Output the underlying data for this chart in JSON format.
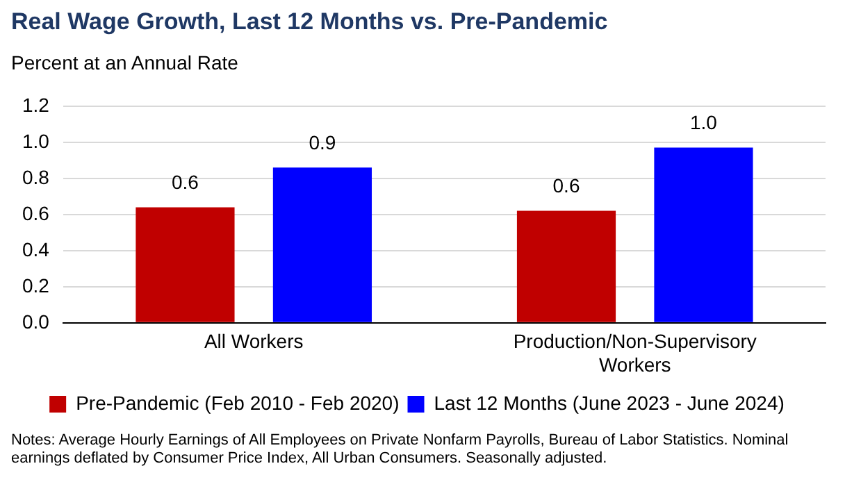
{
  "chart_data": {
    "type": "bar",
    "title": "Real Wage Growth, Last 12 Months vs. Pre-Pandemic",
    "subtitle": "Percent at an Annual Rate",
    "categories": [
      "All Workers",
      "Production/Non-Supervisory Workers"
    ],
    "series": [
      {
        "name": "Pre-Pandemic (Feb 2010 - Feb 2020)",
        "color": "#c00000",
        "values": [
          0.64,
          0.62
        ],
        "value_labels": [
          "0.6",
          "0.6"
        ]
      },
      {
        "name": "Last 12 Months (June 2023 - June 2024)",
        "color": "#0000ff",
        "values": [
          0.86,
          0.97
        ],
        "value_labels": [
          "0.9",
          "1.0"
        ]
      }
    ],
    "ylim": [
      0,
      1.2
    ],
    "yticks": [
      {
        "value": 0,
        "label": "0.0"
      },
      {
        "value": 0.2,
        "label": "0.2"
      },
      {
        "value": 0.4,
        "label": "0.4"
      },
      {
        "value": 0.6,
        "label": "0.6"
      },
      {
        "value": 0.8,
        "label": "0.8"
      },
      {
        "value": 1,
        "label": "1.0"
      },
      {
        "value": 1.2,
        "label": "1.2"
      }
    ],
    "grid": "y",
    "legend": "bottom",
    "annotations": [
      "Notes: Average Hourly Earnings of All Employees on Private Nonfarm Payrolls, Bureau of Labor Statistics. Nominal earnings deflated by Consumer Price Index, All Urban Consumers. Seasonally adjusted."
    ]
  }
}
